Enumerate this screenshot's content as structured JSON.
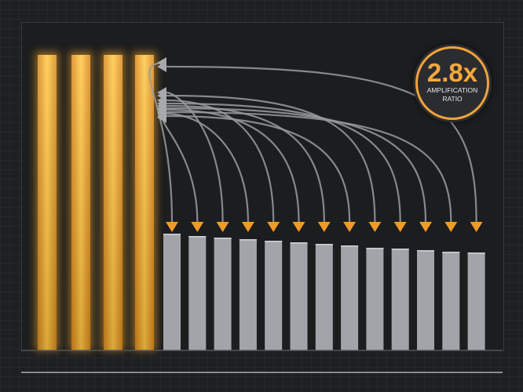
{
  "badge": {
    "value": "2.8x",
    "label": "AMPLIFICATION RATIO"
  },
  "diagram": {
    "gold_bar_count": 4,
    "gray_bar_count": 13
  },
  "colors": {
    "gold": "#f2a728",
    "gray_bar": "#a3a4aa",
    "arrow_orange": "#f09a2a",
    "arc_gray": "#9a9b9f",
    "background": "#1e1f21"
  }
}
